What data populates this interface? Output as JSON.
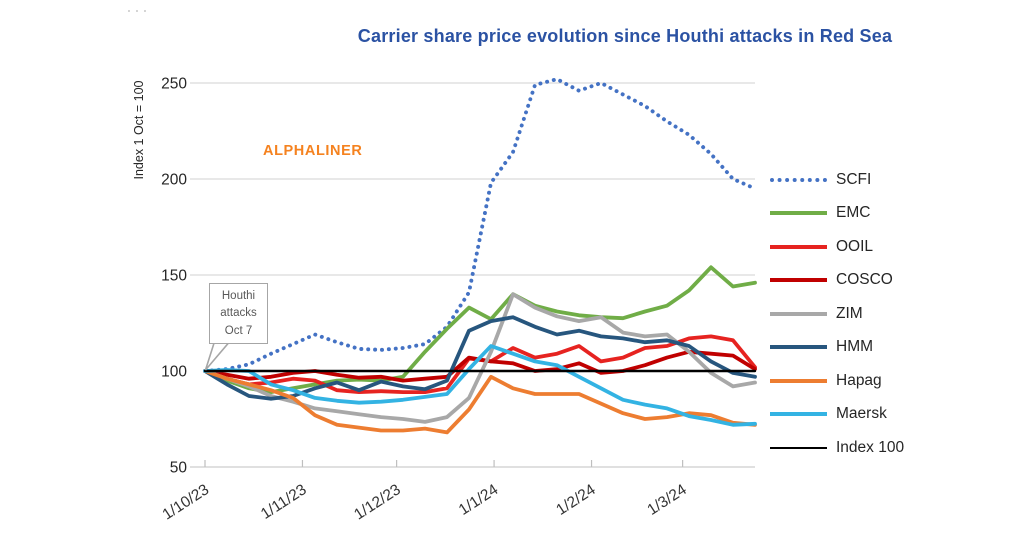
{
  "misc": {
    "artifact_dots": "···"
  },
  "header": {
    "title": "Carrier share price evolution since Houthi attacks in Red Sea",
    "title_color": "#2B52A3"
  },
  "branding": {
    "watermark": "ALPHALINER",
    "color": "#F5821F"
  },
  "annotation": {
    "lines": [
      "Houthi",
      "attacks",
      "Oct 7"
    ]
  },
  "y_axis": {
    "title": "Index 1 Oct = 100",
    "ticks": [
      250,
      200,
      150,
      100,
      50
    ]
  },
  "x_axis": {
    "labels": [
      "1/10/23",
      "1/11/23",
      "1/12/23",
      "1/1/24",
      "1/2/24",
      "1/3/24"
    ]
  },
  "legend": [
    {
      "label": "SCFI",
      "color": "#4472C4",
      "line_style": "dotted"
    },
    {
      "label": "EMC",
      "color": "#70AD47",
      "line_style": "solid"
    },
    {
      "label": "OOIL",
      "color": "#E62320",
      "line_style": "solid"
    },
    {
      "label": "COSCO",
      "color": "#C00000",
      "line_style": "solid"
    },
    {
      "label": "ZIM",
      "color": "#A8A8A8",
      "line_style": "solid"
    },
    {
      "label": "HMM",
      "color": "#27567E",
      "line_style": "solid"
    },
    {
      "label": "Hapag",
      "color": "#ED7D31",
      "line_style": "solid"
    },
    {
      "label": "Maersk",
      "color": "#33B3E3",
      "line_style": "solid"
    },
    {
      "label": "Index 100",
      "color": "#000000",
      "line_style": "thin"
    }
  ],
  "chart_data": {
    "type": "line",
    "title": "Carrier share price evolution since Houthi attacks in Red Sea",
    "ylabel": "Index 1 Oct = 100",
    "ylim": [
      50,
      260
    ],
    "grid": "horizontal",
    "legend_position": "right",
    "x_unit": "weeks since 1 Oct 2023 (26 weekly points, Oct 2023 - late Mar 2024)",
    "month_tick_weeks": [
      0,
      4.43,
      8.71,
      13.14,
      17.57,
      21.71
    ],
    "month_tick_labels": [
      "1/10/23",
      "1/11/23",
      "1/12/23",
      "1/1/24",
      "1/2/24",
      "1/3/24"
    ],
    "series": [
      {
        "name": "SCFI",
        "color": "#4472C4",
        "style": "dotted",
        "values": [
          100,
          101,
          103.5,
          109,
          114,
          119,
          115,
          111.5,
          111,
          112,
          114,
          123,
          141,
          198,
          214,
          249,
          252,
          246,
          250,
          244,
          238,
          230,
          223,
          213,
          200,
          195
        ]
      },
      {
        "name": "EMC",
        "color": "#70AD47",
        "style": "solid",
        "values": [
          100,
          95,
          91,
          89,
          91,
          93,
          95,
          95.5,
          95,
          97,
          110,
          122,
          133,
          127,
          140,
          134,
          131,
          129,
          128,
          127.5,
          131,
          134,
          142,
          154,
          144,
          146
        ]
      },
      {
        "name": "OOIL",
        "color": "#E62320",
        "style": "solid",
        "values": [
          100,
          96,
          93,
          94,
          96,
          95,
          90,
          89,
          89.5,
          89,
          89,
          91,
          106.5,
          105,
          112,
          107,
          109,
          113,
          105,
          107,
          112,
          113,
          117,
          118,
          116,
          102
        ]
      },
      {
        "name": "COSCO",
        "color": "#C00000",
        "style": "solid",
        "values": [
          100,
          98,
          96,
          97,
          99,
          100,
          98,
          96.5,
          97,
          95,
          96,
          97,
          107,
          105,
          104,
          100,
          101,
          104,
          99,
          100,
          103,
          107,
          110,
          109,
          108,
          101
        ]
      },
      {
        "name": "ZIM",
        "color": "#A8A8A8",
        "style": "solid",
        "values": [
          100,
          96,
          92,
          87,
          84,
          80.5,
          79,
          77.5,
          76,
          75,
          73.5,
          76,
          86,
          110,
          140,
          133,
          128.5,
          126,
          128,
          120,
          118,
          119,
          110,
          99,
          92,
          94
        ]
      },
      {
        "name": "HMM",
        "color": "#27567E",
        "style": "solid",
        "values": [
          100,
          93,
          87,
          85.5,
          87,
          91,
          94,
          90,
          94.5,
          92,
          90.5,
          95,
          121,
          126,
          128,
          123,
          119,
          121,
          118,
          117,
          115,
          116,
          113,
          105,
          99,
          97
        ]
      },
      {
        "name": "Hapag",
        "color": "#ED7D31",
        "style": "solid",
        "values": [
          100,
          96,
          93,
          90,
          86,
          77,
          72,
          70.5,
          69,
          69,
          70,
          68,
          80,
          97,
          91,
          88,
          88,
          88,
          83,
          78,
          75,
          76,
          78,
          77,
          73,
          72
        ]
      },
      {
        "name": "Maersk",
        "color": "#33B3E3",
        "style": "solid",
        "values": [
          100,
          100.5,
          100,
          93,
          90,
          86,
          84.5,
          83.5,
          84,
          85,
          86.5,
          88,
          101,
          113,
          109,
          105,
          103,
          97,
          91,
          85,
          82.5,
          80.5,
          76.5,
          74.5,
          72,
          72.5
        ]
      },
      {
        "name": "Index 100",
        "color": "#000000",
        "style": "thin",
        "x_weeks": [
          0,
          25
        ],
        "values": [
          100,
          100
        ]
      }
    ]
  }
}
